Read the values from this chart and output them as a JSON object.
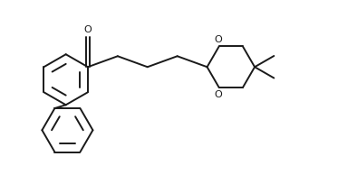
{
  "bg_color": "#ffffff",
  "line_color": "#1a1a1a",
  "lw": 1.4,
  "figsize": [
    3.94,
    1.94
  ],
  "dpi": 100,
  "xlim": [
    0.0,
    4.2
  ],
  "ylim": [
    -1.1,
    1.1
  ]
}
